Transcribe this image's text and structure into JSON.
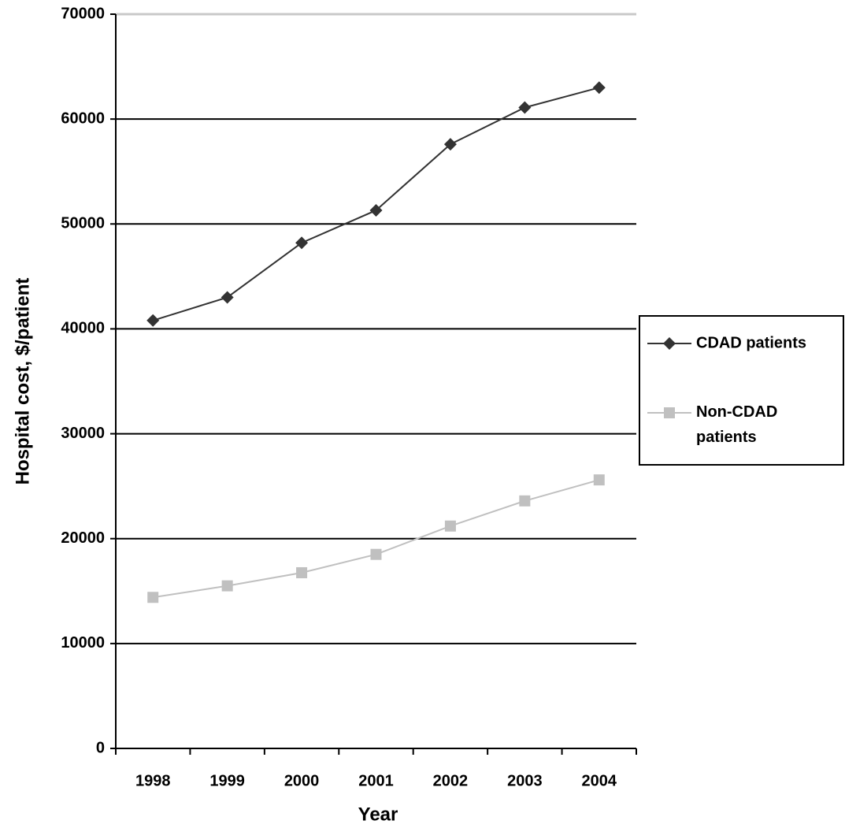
{
  "chart_data": {
    "type": "line",
    "x_label": "Year",
    "y_label": "Hospital cost, $/patient",
    "categories": [
      "1998",
      "1999",
      "2000",
      "2001",
      "2002",
      "2003",
      "2004"
    ],
    "series": [
      {
        "name": "CDAD patients",
        "color": "#333333",
        "marker": "diamond",
        "values": [
          40800,
          43000,
          48200,
          51300,
          57600,
          61100,
          63000
        ]
      },
      {
        "name": "Non-CDAD patients",
        "color": "#c0c0c0",
        "marker": "square",
        "values": [
          14400,
          15500,
          16750,
          18500,
          21200,
          23600,
          25600
        ]
      }
    ],
    "ylim": [
      0,
      70000
    ],
    "yticks": [
      0,
      10000,
      20000,
      30000,
      40000,
      50000,
      60000,
      70000
    ],
    "grid": true,
    "legend": "right"
  }
}
